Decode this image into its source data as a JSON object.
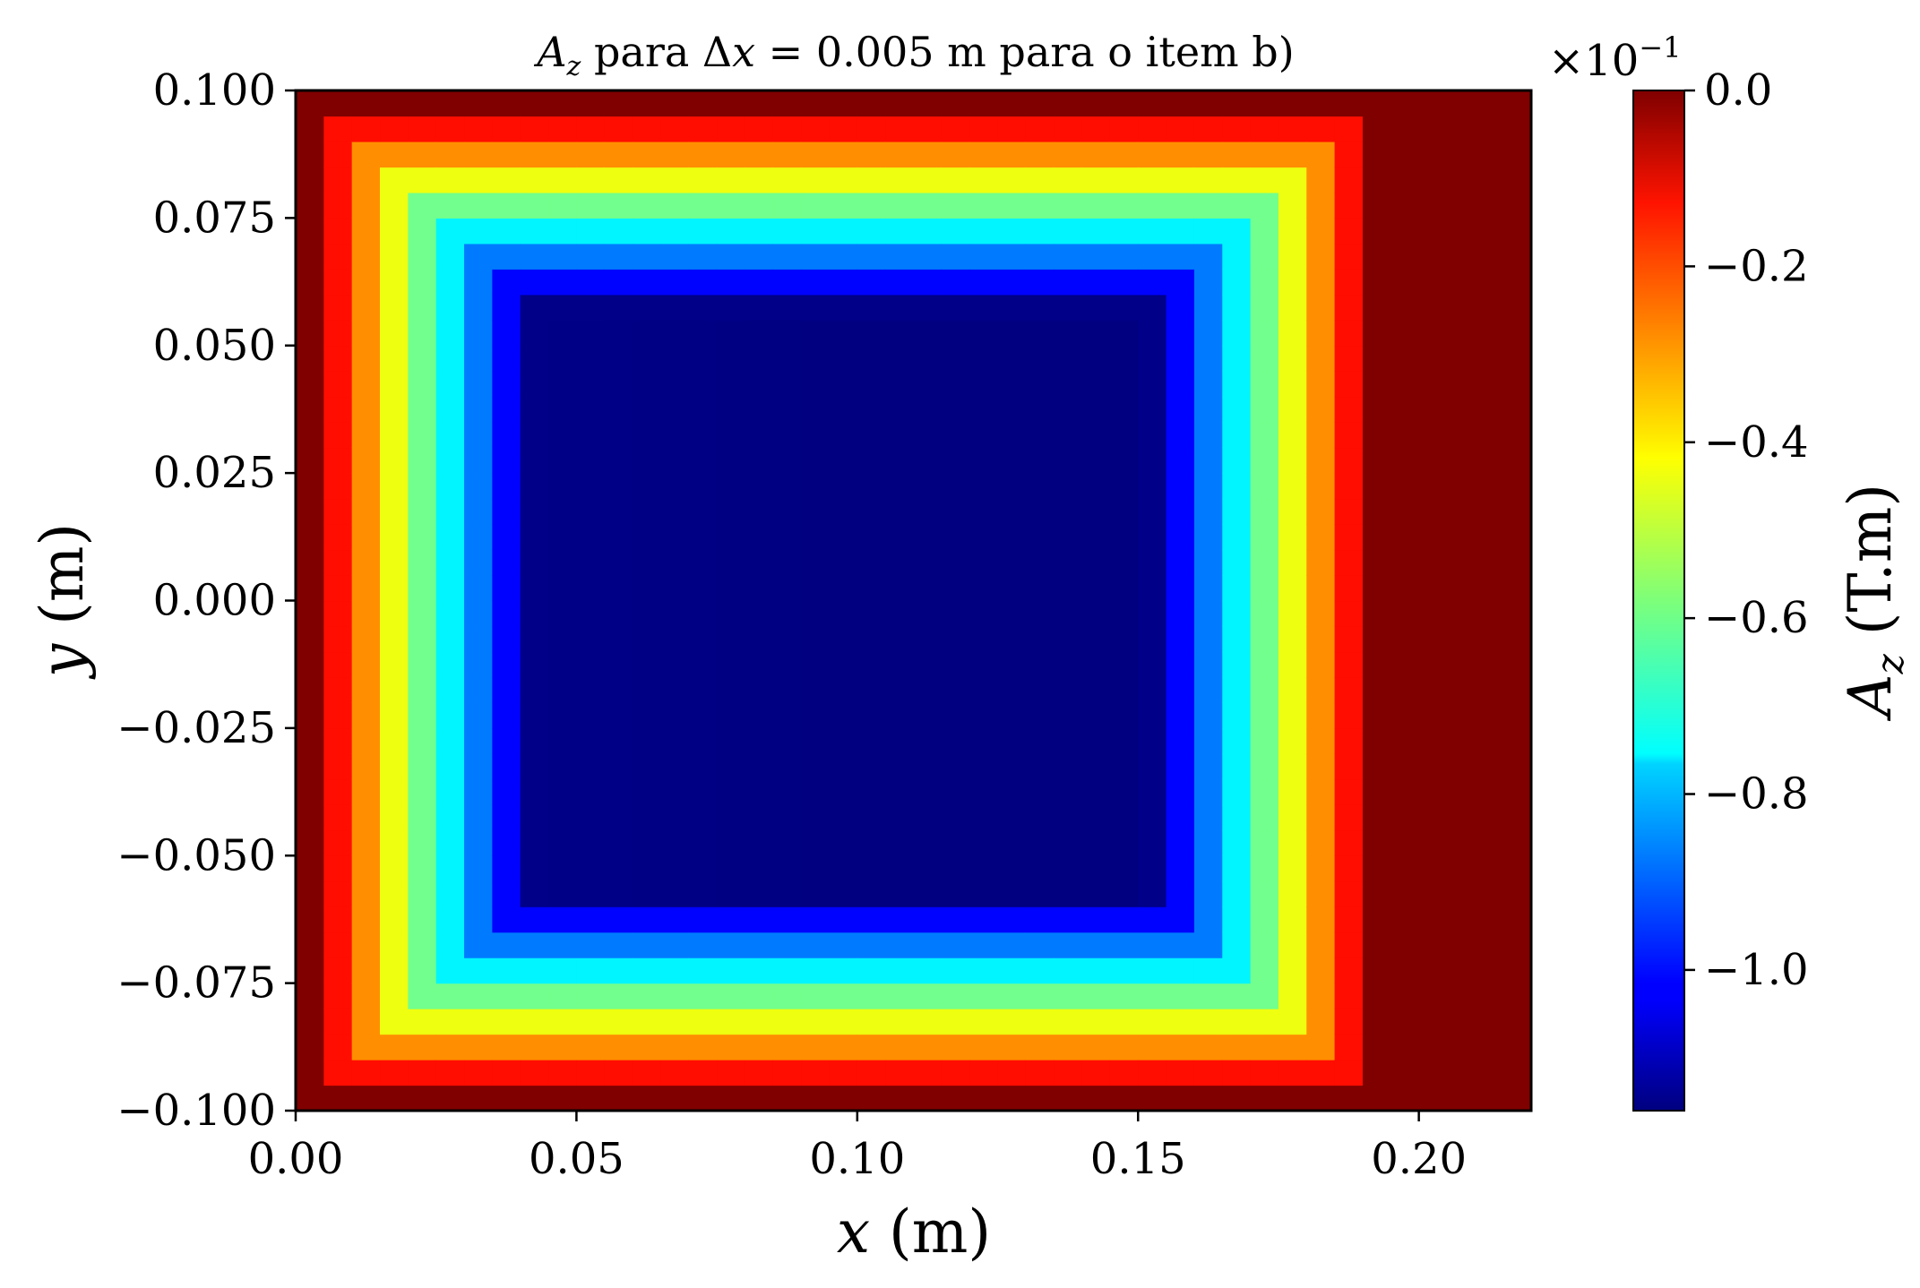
{
  "chart_data": {
    "type": "heatmap",
    "title_parts": {
      "sym": "A",
      "sub": "z",
      "mid": " para Δ",
      "var": "x",
      "rest": " = 0.005 m para o item b)"
    },
    "xlabel_parts": {
      "var": "x",
      "unit": " (m)"
    },
    "ylabel_parts": {
      "var": "y",
      "unit": " (m)"
    },
    "colorbar_label_parts": {
      "sym": "A",
      "sub": "z",
      "unit": " (T.m)"
    },
    "colorbar_multiplier": {
      "base": "×10",
      "exp": "−1"
    },
    "colormap": "jet",
    "xlim": [
      0.0,
      0.22
    ],
    "ylim": [
      -0.1,
      0.1
    ],
    "x_ticks": [
      0.0,
      0.05,
      0.1,
      0.15,
      0.2
    ],
    "x_tick_labels": [
      "0.00",
      "0.05",
      "0.10",
      "0.15",
      "0.20"
    ],
    "y_ticks": [
      0.1,
      0.075,
      0.05,
      0.025,
      0.0,
      -0.025,
      -0.05,
      -0.075,
      -0.1
    ],
    "y_tick_labels": [
      "0.100",
      "0.075",
      "0.050",
      "0.025",
      "0.000",
      "−0.025",
      "−0.050",
      "−0.075",
      "−0.100"
    ],
    "colorbar_range": [
      -1.16,
      0.0
    ],
    "colorbar_ticks": [
      0.0,
      -0.2,
      -0.4,
      -0.6,
      -0.8,
      -1.0
    ],
    "colorbar_tick_labels": [
      "0.0",
      "−0.2",
      "−0.4",
      "−0.6",
      "−0.8",
      "−1.0"
    ],
    "grid": false,
    "field_description": {
      "grid_step_m": 0.005,
      "inner_region_x": [
        0.04,
        0.165
      ],
      "inner_region_y": [
        -0.06,
        0.06
      ],
      "inner_value": -1.15,
      "nonzero_x_extent": [
        0.0,
        0.195
      ],
      "zero_region_x": [
        0.195,
        0.22
      ]
    }
  }
}
